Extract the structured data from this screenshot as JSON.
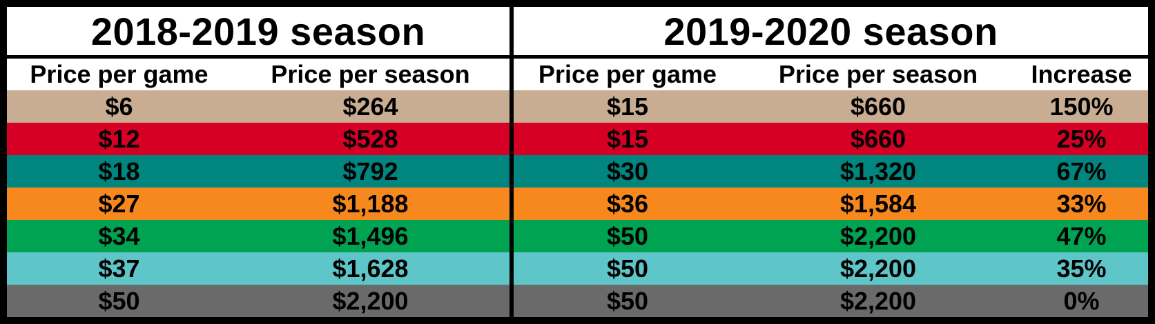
{
  "colors": {
    "rows": [
      "#c9ad93",
      "#d60024",
      "#00857f",
      "#f7881d",
      "#00a351",
      "#5ec5c8",
      "#6a6a6a"
    ],
    "background": "#000000",
    "header_bg": "#ffffff"
  },
  "season1": {
    "title": "2018-2019 season",
    "headers": [
      "Price per game",
      "Price per season"
    ],
    "rows": [
      [
        "$6",
        "$264"
      ],
      [
        "$12",
        "$528"
      ],
      [
        "$18",
        "$792"
      ],
      [
        "$27",
        "$1,188"
      ],
      [
        "$34",
        "$1,496"
      ],
      [
        "$37",
        "$1,628"
      ],
      [
        "$50",
        "$2,200"
      ]
    ]
  },
  "season2": {
    "title": "2019-2020 season",
    "headers": [
      "Price per game",
      "Price per season",
      "Increase"
    ],
    "rows": [
      [
        "$15",
        "$660",
        "150%"
      ],
      [
        "$15",
        "$660",
        "25%"
      ],
      [
        "$30",
        "$1,320",
        "67%"
      ],
      [
        "$36",
        "$1,584",
        "33%"
      ],
      [
        "$50",
        "$2,200",
        "47%"
      ],
      [
        "$50",
        "$2,200",
        "35%"
      ],
      [
        "$50",
        "$2,200",
        "0%"
      ]
    ]
  }
}
